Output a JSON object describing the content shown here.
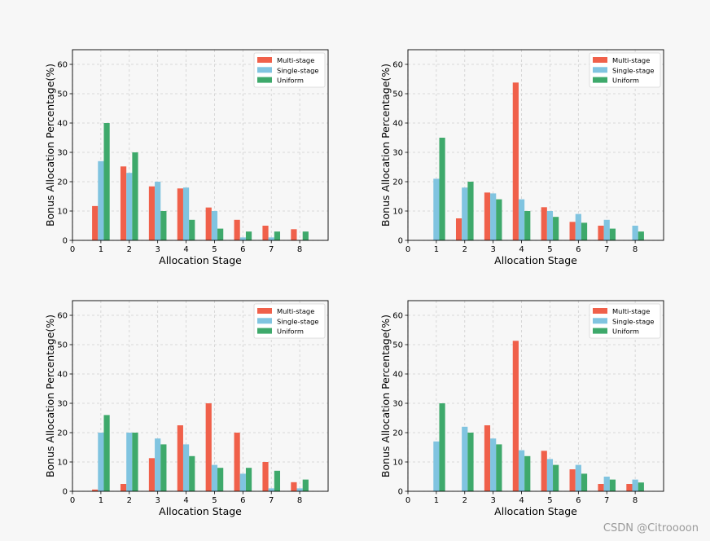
{
  "chart_data": [
    {
      "type": "bar",
      "categories": [
        "1",
        "2",
        "3",
        "4",
        "5",
        "6",
        "7",
        "8"
      ],
      "x_ticks": [
        "0",
        "1",
        "2",
        "3",
        "4",
        "5",
        "6",
        "7",
        "8"
      ],
      "y_ticks": [
        "0",
        "10",
        "20",
        "30",
        "40",
        "50",
        "60"
      ],
      "xlim": [
        0,
        9
      ],
      "ylim": [
        0,
        65
      ],
      "xlabel": "Allocation Stage",
      "ylabel": "Bonus Allocation Percentage(%)",
      "grid": true,
      "legend_position": "top-right",
      "series": [
        {
          "name": "Multi-stage",
          "values": [
            11.7,
            25.2,
            18.4,
            17.7,
            11.2,
            7.0,
            5.0,
            3.8
          ]
        },
        {
          "name": "Single-stage",
          "values": [
            27,
            23,
            20,
            18,
            10,
            1,
            1,
            0
          ]
        },
        {
          "name": "Uniform",
          "values": [
            40,
            30,
            10,
            7,
            4,
            3,
            3,
            3
          ]
        }
      ]
    },
    {
      "type": "bar",
      "categories": [
        "1",
        "2",
        "3",
        "4",
        "5",
        "6",
        "7",
        "8"
      ],
      "x_ticks": [
        "0",
        "1",
        "2",
        "3",
        "4",
        "5",
        "6",
        "7",
        "8"
      ],
      "y_ticks": [
        "0",
        "10",
        "20",
        "30",
        "40",
        "50",
        "60"
      ],
      "xlim": [
        0,
        9
      ],
      "ylim": [
        0,
        65
      ],
      "xlabel": "Allocation Stage",
      "ylabel": "Bonus Allocation Percentage(%)",
      "grid": true,
      "legend_position": "top-right",
      "series": [
        {
          "name": "Multi-stage",
          "values": [
            0,
            7.5,
            16.3,
            53.8,
            11.3,
            6.3,
            5.0,
            0
          ]
        },
        {
          "name": "Single-stage",
          "values": [
            21,
            18,
            16,
            14,
            10,
            9,
            7,
            5
          ]
        },
        {
          "name": "Uniform",
          "values": [
            35,
            20,
            14,
            10,
            8,
            6,
            4,
            3
          ]
        }
      ]
    },
    {
      "type": "bar",
      "categories": [
        "1",
        "2",
        "3",
        "4",
        "5",
        "6",
        "7",
        "8"
      ],
      "x_ticks": [
        "0",
        "1",
        "2",
        "3",
        "4",
        "5",
        "6",
        "7",
        "8"
      ],
      "y_ticks": [
        "0",
        "10",
        "20",
        "30",
        "40",
        "50",
        "60"
      ],
      "xlim": [
        0,
        9
      ],
      "ylim": [
        0,
        65
      ],
      "xlabel": "Allocation Stage",
      "ylabel": "Bonus Allocation Percentage(%)",
      "grid": true,
      "legend_position": "top-right",
      "series": [
        {
          "name": "Multi-stage",
          "values": [
            0.6,
            2.5,
            11.3,
            22.5,
            30.0,
            20.0,
            10.0,
            3.1
          ]
        },
        {
          "name": "Single-stage",
          "values": [
            20,
            20,
            18,
            16,
            9,
            6,
            1,
            1
          ]
        },
        {
          "name": "Uniform",
          "values": [
            26,
            20,
            16,
            12,
            8,
            8,
            7,
            4
          ]
        }
      ]
    },
    {
      "type": "bar",
      "categories": [
        "1",
        "2",
        "3",
        "4",
        "5",
        "6",
        "7",
        "8"
      ],
      "x_ticks": [
        "0",
        "1",
        "2",
        "3",
        "4",
        "5",
        "6",
        "7",
        "8"
      ],
      "y_ticks": [
        "0",
        "10",
        "20",
        "30",
        "40",
        "50",
        "60"
      ],
      "xlim": [
        0,
        9
      ],
      "ylim": [
        0,
        65
      ],
      "xlabel": "Allocation Stage",
      "ylabel": "Bonus Allocation Percentage(%)",
      "grid": true,
      "legend_position": "top-right",
      "series": [
        {
          "name": "Multi-stage",
          "values": [
            0,
            0,
            22.5,
            51.3,
            13.8,
            7.5,
            2.5,
            2.5
          ]
        },
        {
          "name": "Single-stage",
          "values": [
            17,
            22,
            18,
            14,
            11,
            9,
            5,
            4
          ]
        },
        {
          "name": "Uniform",
          "values": [
            30,
            20,
            16,
            12,
            9,
            6,
            4,
            3
          ]
        }
      ]
    }
  ],
  "colors": {
    "Multi-stage": "#f0604a",
    "Single-stage": "#80c4e0",
    "Uniform": "#3ea96b",
    "grid": "#cfcfcf",
    "axis": "#000000"
  },
  "watermark": "CSDN @Citroooon"
}
